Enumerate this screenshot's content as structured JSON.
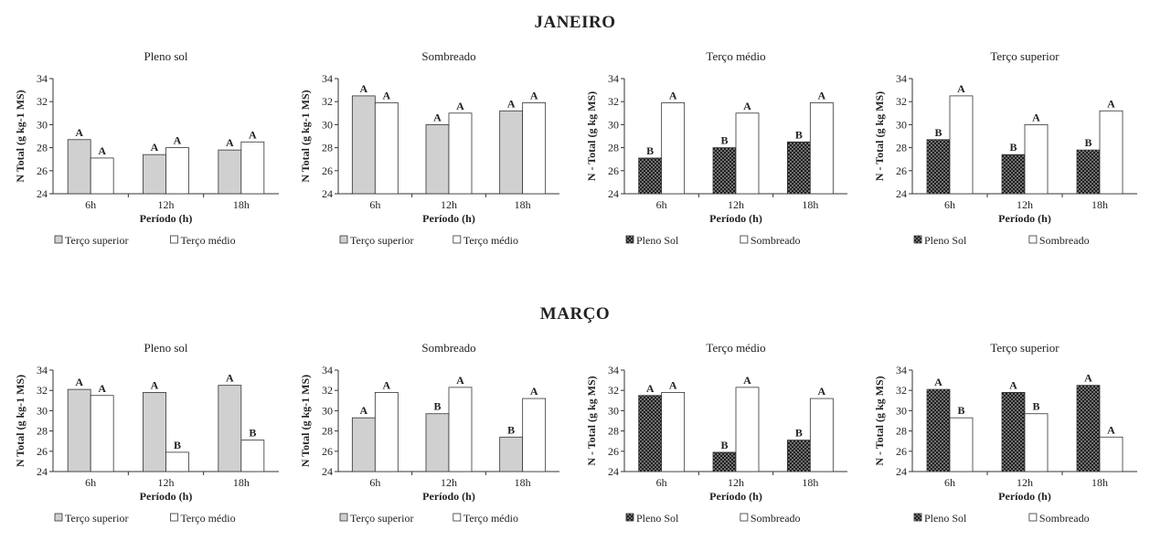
{
  "sections": [
    {
      "title": "JANEIRO"
    },
    {
      "title": "MARÇO"
    }
  ],
  "chart_data": [
    {
      "type": "bar",
      "title": "Pleno sol",
      "categories": [
        "6h",
        "12h",
        "18h"
      ],
      "xlabel": "Período (h)",
      "ylabel": "N Total (g kg-1 MS)",
      "ylim": [
        24,
        34
      ],
      "yticks": [
        24,
        26,
        28,
        30,
        32,
        34
      ],
      "series": [
        {
          "name": "Terço superior",
          "pattern": "gray",
          "values": [
            28.7,
            27.4,
            27.8
          ],
          "letters": [
            "A",
            "A",
            "A"
          ]
        },
        {
          "name": "Terço médio",
          "pattern": "white",
          "values": [
            27.1,
            28.0,
            28.5
          ],
          "letters": [
            "A",
            "A",
            "A"
          ]
        }
      ]
    },
    {
      "type": "bar",
      "title": "Sombreado",
      "categories": [
        "6h",
        "12h",
        "18h"
      ],
      "xlabel": "Período (h)",
      "ylabel": "N Total (g kg-1 MS)",
      "ylim": [
        24,
        34
      ],
      "yticks": [
        24,
        26,
        28,
        30,
        32,
        34
      ],
      "series": [
        {
          "name": "Terço superior",
          "pattern": "gray",
          "values": [
            32.5,
            30.0,
            31.2
          ],
          "letters": [
            "A",
            "A",
            "A"
          ]
        },
        {
          "name": "Terço médio",
          "pattern": "white",
          "values": [
            31.9,
            31.0,
            31.9
          ],
          "letters": [
            "A",
            "A",
            "A"
          ]
        }
      ]
    },
    {
      "type": "bar",
      "title": "Terço médio",
      "categories": [
        "6h",
        "12h",
        "18h"
      ],
      "xlabel": "Período (h)",
      "ylabel": "N - Total (g kg MS)",
      "ylim": [
        24,
        34
      ],
      "yticks": [
        24,
        26,
        28,
        30,
        32,
        34
      ],
      "series": [
        {
          "name": "Pleno Sol",
          "pattern": "dots",
          "values": [
            27.1,
            28.0,
            28.5
          ],
          "letters": [
            "B",
            "B",
            "B"
          ]
        },
        {
          "name": "Sombreado",
          "pattern": "white",
          "values": [
            31.9,
            31.0,
            31.9
          ],
          "letters": [
            "A",
            "A",
            "A"
          ]
        }
      ]
    },
    {
      "type": "bar",
      "title": "Terço superior",
      "categories": [
        "6h",
        "12h",
        "18h"
      ],
      "xlabel": "Período (h)",
      "ylabel": "N - Total (g kg MS)",
      "ylim": [
        24,
        34
      ],
      "yticks": [
        24,
        26,
        28,
        30,
        32,
        34
      ],
      "series": [
        {
          "name": "Pleno Sol",
          "pattern": "dots",
          "values": [
            28.7,
            27.4,
            27.8
          ],
          "letters": [
            "B",
            "B",
            "B"
          ]
        },
        {
          "name": "Sombreado",
          "pattern": "white",
          "values": [
            32.5,
            30.0,
            31.2
          ],
          "letters": [
            "A",
            "A",
            "A"
          ]
        }
      ]
    },
    {
      "type": "bar",
      "title": "Pleno sol",
      "categories": [
        "6h",
        "12h",
        "18h"
      ],
      "xlabel": "Período (h)",
      "ylabel": "N Total (g kg-1 MS)",
      "ylim": [
        24,
        34
      ],
      "yticks": [
        24,
        26,
        28,
        30,
        32,
        34
      ],
      "series": [
        {
          "name": "Terço superior",
          "pattern": "gray",
          "values": [
            32.1,
            31.8,
            32.5
          ],
          "letters": [
            "A",
            "A",
            "A"
          ]
        },
        {
          "name": "Terço médio",
          "pattern": "white",
          "values": [
            31.5,
            25.9,
            27.1
          ],
          "letters": [
            "A",
            "B",
            "B"
          ]
        }
      ]
    },
    {
      "type": "bar",
      "title": "Sombreado",
      "categories": [
        "6h",
        "12h",
        "18h"
      ],
      "xlabel": "Período (h)",
      "ylabel": "N Total (g kg-1 MS)",
      "ylim": [
        24,
        34
      ],
      "yticks": [
        24,
        26,
        28,
        30,
        32,
        34
      ],
      "series": [
        {
          "name": "Terço superior",
          "pattern": "gray",
          "values": [
            29.3,
            29.7,
            27.4
          ],
          "letters": [
            "A",
            "B",
            "B"
          ]
        },
        {
          "name": "Terço médio",
          "pattern": "white",
          "values": [
            31.8,
            32.3,
            31.2
          ],
          "letters": [
            "A",
            "A",
            "A"
          ]
        }
      ]
    },
    {
      "type": "bar",
      "title": "Terço médio",
      "categories": [
        "6h",
        "12h",
        "18h"
      ],
      "xlabel": "Período (h)",
      "ylabel": "N - Total (g kg MS)",
      "ylim": [
        24,
        34
      ],
      "yticks": [
        24,
        26,
        28,
        30,
        32,
        34
      ],
      "series": [
        {
          "name": "Pleno Sol",
          "pattern": "dots",
          "values": [
            31.5,
            25.9,
            27.1
          ],
          "letters": [
            "A",
            "B",
            "B"
          ]
        },
        {
          "name": "Sombreado",
          "pattern": "white",
          "values": [
            31.8,
            32.3,
            31.2
          ],
          "letters": [
            "A",
            "A",
            "A"
          ]
        }
      ]
    },
    {
      "type": "bar",
      "title": "Terço superior",
      "categories": [
        "6h",
        "12h",
        "18h"
      ],
      "xlabel": "Período (h)",
      "ylabel": "N - Total (g kg MS)",
      "ylim": [
        24,
        34
      ],
      "yticks": [
        24,
        26,
        28,
        30,
        32,
        34
      ],
      "series": [
        {
          "name": "Pleno Sol",
          "pattern": "dots",
          "values": [
            32.1,
            31.8,
            32.5
          ],
          "letters": [
            "A",
            "A",
            "A"
          ]
        },
        {
          "name": "Sombreado",
          "pattern": "white",
          "values": [
            29.3,
            29.7,
            27.4
          ],
          "letters": [
            "B",
            "B",
            "A"
          ]
        }
      ]
    }
  ],
  "colors": {
    "gray_fill": "#d0d0d0",
    "white_fill": "#ffffff",
    "dots_bg": "#1e1e1e",
    "dots_fg": "#d8d8d8",
    "stroke": "#333333"
  }
}
